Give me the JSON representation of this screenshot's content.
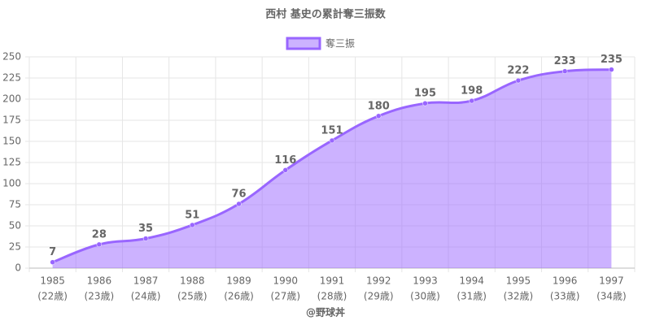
{
  "chart_data": {
    "type": "area",
    "title": "西村 基史の累計奪三振数",
    "categories": [
      [
        "1985",
        "(22歳)"
      ],
      [
        "1986",
        "(23歳)"
      ],
      [
        "1987",
        "(24歳)"
      ],
      [
        "1988",
        "(25歳)"
      ],
      [
        "1989",
        "(26歳)"
      ],
      [
        "1990",
        "(27歳)"
      ],
      [
        "1991",
        "(28歳)"
      ],
      [
        "1992",
        "(29歳)"
      ],
      [
        "1993",
        "(30歳)"
      ],
      [
        "1994",
        "(31歳)"
      ],
      [
        "1995",
        "(32歳)"
      ],
      [
        "1996",
        "(33歳)"
      ],
      [
        "1997",
        "(34歳)"
      ]
    ],
    "series": [
      {
        "name": "奪三振",
        "color": "#9966ff",
        "values": [
          7,
          28,
          35,
          51,
          76,
          116,
          151,
          180,
          195,
          198,
          222,
          233,
          235
        ]
      }
    ],
    "ylim": [
      0,
      250
    ],
    "yticks": [
      0,
      25,
      50,
      75,
      100,
      125,
      150,
      175,
      200,
      225,
      250
    ],
    "grid": true,
    "legend": "top",
    "footer": "@野球丼"
  }
}
